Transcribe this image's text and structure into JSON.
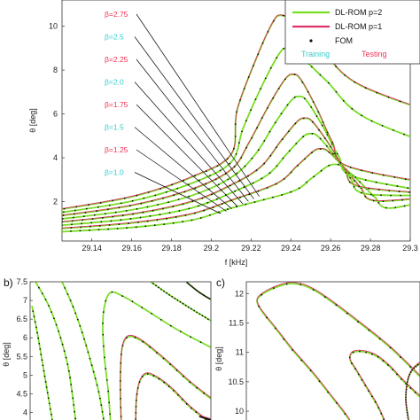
{
  "colors": {
    "dlrom_p2": "#77dd22",
    "dlrom_p1": "#dd3366",
    "fom": "#111111",
    "training": "#33cccc",
    "testing": "#ee3355",
    "axis": "#333333"
  },
  "panels": {
    "b": {
      "label": "b)"
    },
    "c": {
      "label": "c)"
    }
  },
  "legend": {
    "p2": "DL-ROM p=2",
    "p1": "DL-ROM p=1",
    "fom": "FOM",
    "training": "Training",
    "testing": "Testing"
  },
  "chart_data": [
    {
      "type": "line",
      "panel": "a",
      "xlabel": "f [kHz]",
      "ylabel": "θ [deg]",
      "xlim": [
        29.125,
        29.3
      ],
      "ylim": [
        0.2,
        11.2
      ],
      "xticks": [
        "29.14",
        "29.16",
        "29.18",
        "29.2",
        "29.22",
        "29.24",
        "29.26",
        "29.28",
        "29.3"
      ],
      "yticks": [
        "2",
        "4",
        "6",
        "8",
        "10"
      ],
      "betas": [
        {
          "label": "β=2.75",
          "value": 2.75,
          "set": "testing"
        },
        {
          "label": "β=2.5",
          "value": 2.5,
          "set": "training"
        },
        {
          "label": "β=2.25",
          "value": 2.25,
          "set": "testing"
        },
        {
          "label": "β=2.0",
          "value": 2.0,
          "set": "training"
        },
        {
          "label": "β=1.75",
          "value": 1.75,
          "set": "testing"
        },
        {
          "label": "β=1.5",
          "value": 1.5,
          "set": "training"
        },
        {
          "label": "β=1.25",
          "value": 1.25,
          "set": "testing"
        },
        {
          "label": "β=1.0",
          "value": 1.0,
          "set": "training"
        }
      ],
      "series": [
        {
          "beta": 1.0,
          "peak_f": 29.262,
          "peak_theta": 3.7
        },
        {
          "beta": 1.25,
          "peak_f": 29.255,
          "peak_theta": 4.4
        },
        {
          "beta": 1.5,
          "peak_f": 29.25,
          "peak_theta": 5.1
        },
        {
          "beta": 1.75,
          "peak_f": 29.247,
          "peak_theta": 5.8
        },
        {
          "beta": 2.0,
          "peak_f": 29.244,
          "peak_theta": 6.8
        },
        {
          "beta": 2.25,
          "peak_f": 29.241,
          "peak_theta": 7.8
        },
        {
          "beta": 2.5,
          "peak_f": 29.238,
          "peak_theta": 9.0
        },
        {
          "beta": 2.75,
          "peak_f": 29.235,
          "peak_theta": 10.5
        }
      ]
    },
    {
      "type": "line",
      "panel": "b",
      "ylabel": "θ [deg]",
      "ylim": [
        3.8,
        7.5
      ],
      "yticks": [
        "4",
        "4.5",
        "5",
        "5.5",
        "6",
        "6.5",
        "7",
        "7.5"
      ]
    },
    {
      "type": "line",
      "panel": "c",
      "ylabel": "θ [deg]",
      "ylim": [
        9.85,
        12.2
      ],
      "yticks": [
        "10",
        "10.5",
        "11",
        "11.5",
        "12"
      ]
    }
  ]
}
